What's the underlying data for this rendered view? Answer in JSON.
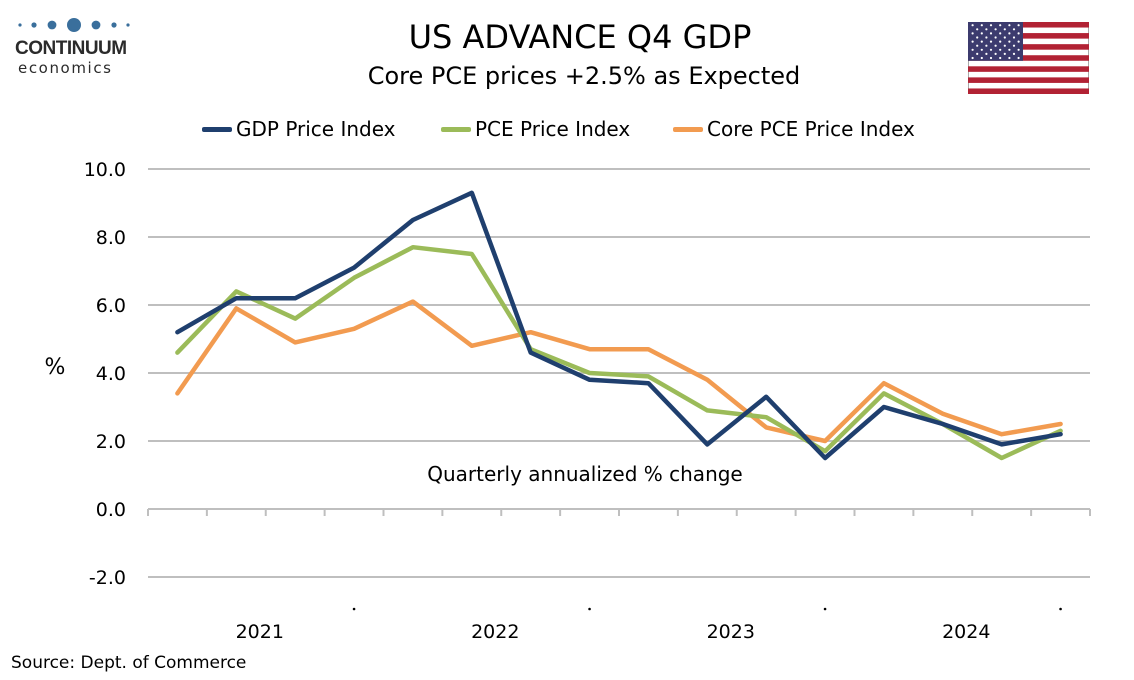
{
  "header": {
    "logo_name": "CONTINUUM",
    "logo_sub": "economics",
    "title": "US ADVANCE Q4  GDP",
    "subtitle": "Core PCE prices +2.5% as Expected",
    "flag_icon": "us-flag-icon"
  },
  "colors": {
    "gdp": "#1f3f6e",
    "pce": "#9bbb59",
    "core": "#f29b50",
    "grid": "#bfbfbf",
    "logo": "#3a6f9c"
  },
  "footer": {
    "source": "Source: Dept. of Commerce"
  },
  "chart_data": {
    "type": "line",
    "title": "US ADVANCE Q4  GDP",
    "subtitle": "Core PCE prices +2.5% as Expected",
    "ylabel": "%",
    "xlabel": "",
    "annotation": "Quarterly annualized % change",
    "ylim": [
      -2.0,
      10.0
    ],
    "yticks": [
      "-2.0",
      "0.0",
      "2.0",
      "4.0",
      "6.0",
      "8.0",
      "10.0"
    ],
    "ytick_values": [
      -2,
      0,
      2,
      4,
      6,
      8,
      10
    ],
    "x": [
      "2021 Q1",
      "2021 Q2",
      "2021 Q3",
      "2021 Q4",
      "2022 Q1",
      "2022 Q2",
      "2022 Q3",
      "2022 Q4",
      "2023 Q1",
      "2023 Q2",
      "2023 Q3",
      "2023 Q4",
      "2024 Q1",
      "2024 Q2",
      "2024 Q3",
      "2024 Q4"
    ],
    "year_labels": [
      "2021",
      "2022",
      "2023",
      "2024"
    ],
    "grid": true,
    "legend_position": "top",
    "series": [
      {
        "name": "GDP Price Index",
        "color": "#1f3f6e",
        "values": [
          5.2,
          6.2,
          6.2,
          7.1,
          8.5,
          9.3,
          4.6,
          3.8,
          3.7,
          1.9,
          3.3,
          1.5,
          3.0,
          2.5,
          1.9,
          2.2
        ]
      },
      {
        "name": "PCE Price Index",
        "color": "#9bbb59",
        "values": [
          4.6,
          6.4,
          5.6,
          6.8,
          7.7,
          7.5,
          4.7,
          4.0,
          3.9,
          2.9,
          2.7,
          1.7,
          3.4,
          2.5,
          1.5,
          2.3
        ]
      },
      {
        "name": "Core PCE Price Index",
        "color": "#f29b50",
        "values": [
          3.4,
          5.9,
          4.9,
          5.3,
          6.1,
          4.8,
          5.2,
          4.7,
          4.7,
          3.8,
          2.4,
          2.0,
          3.7,
          2.8,
          2.2,
          2.5
        ]
      }
    ]
  }
}
